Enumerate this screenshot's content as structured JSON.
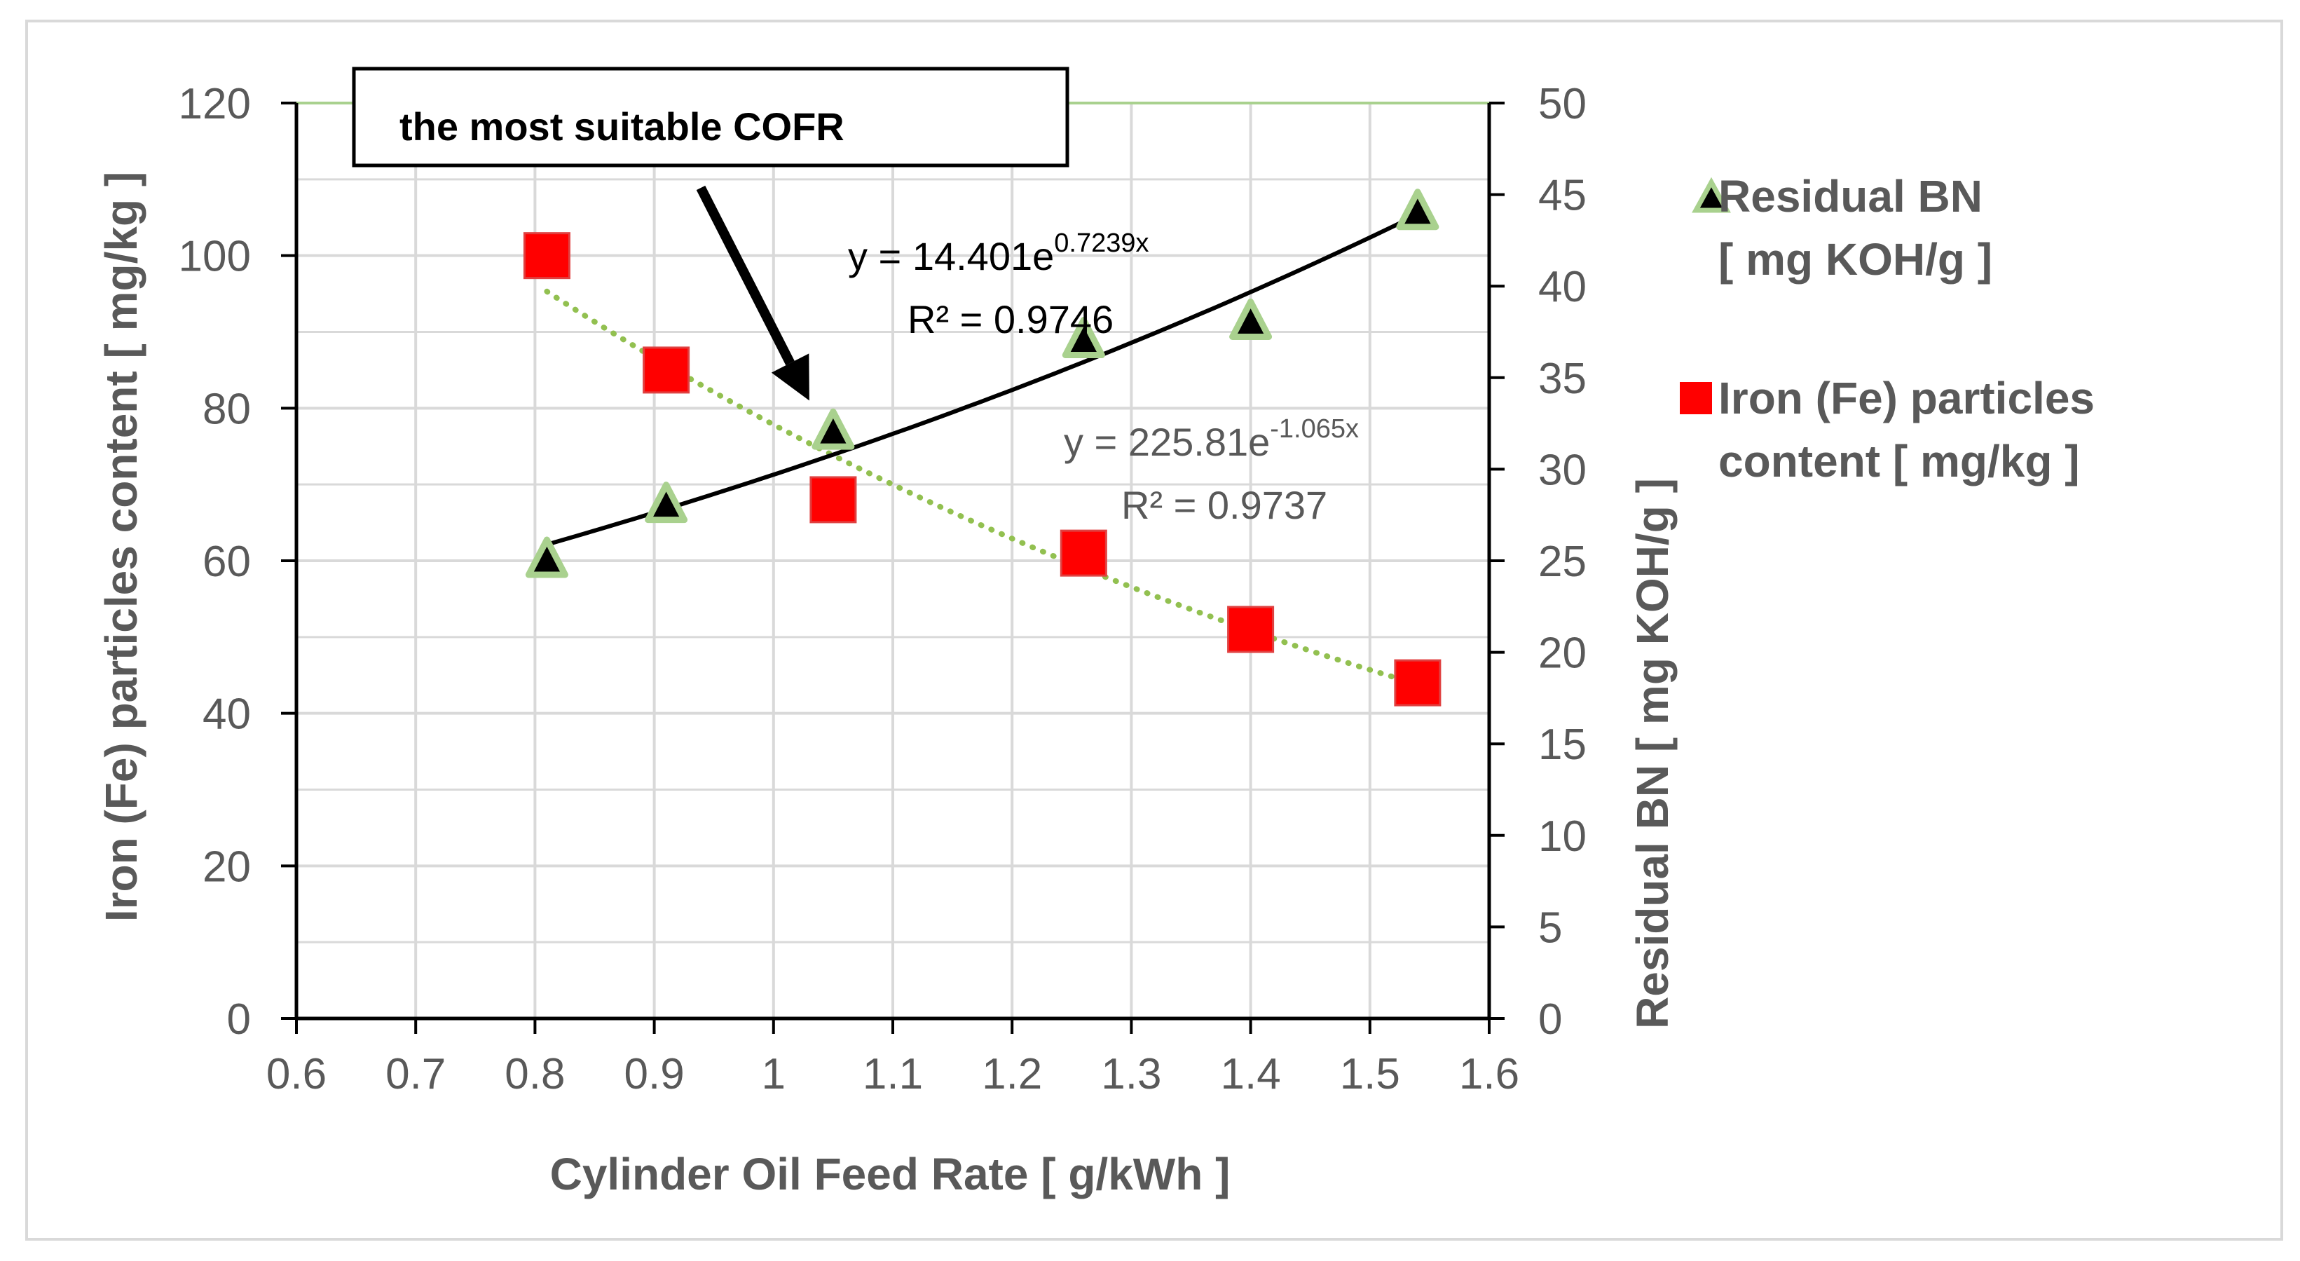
{
  "colors": {
    "grid": "#d9d9d9",
    "axis": "#000000",
    "tick_text": "#595959",
    "axis_title": "#595959",
    "bn_series": "#000000",
    "bn_marker_edge": "#a9d18e",
    "fe_series": "#ff0000",
    "fe_trend": "#92c050",
    "annotation_box": "#000000",
    "top_line": "#a9d18e"
  },
  "chart_data": {
    "type": "scatter",
    "title": "",
    "xlabel": "Cylinder Oil Feed Rate  [ g/kWh ]",
    "ylabel_left": "Iron (Fe) particles content  [ mg/kg ]",
    "ylabel_right": "Residual BN  [ mg KOH/g ]",
    "xlim": [
      0.6,
      1.6
    ],
    "ylim_left": [
      0,
      120
    ],
    "ylim_right": [
      0,
      50
    ],
    "x_ticks": [
      0.6,
      0.7,
      0.8,
      0.9,
      1,
      1.1,
      1.2,
      1.3,
      1.4,
      1.5,
      1.6
    ],
    "x_tick_labels": [
      "0.6",
      "0.7",
      "0.8",
      "0.9",
      "1",
      "1.1",
      "1.2",
      "1.3",
      "1.4",
      "1.5",
      "1.6"
    ],
    "y_left_ticks": [
      0,
      20,
      40,
      60,
      80,
      100,
      120
    ],
    "y_left_tick_labels": [
      "0",
      "20",
      "40",
      "60",
      "80",
      "100",
      "120"
    ],
    "y_right_ticks": [
      0,
      5,
      10,
      15,
      20,
      25,
      30,
      35,
      40,
      45,
      50
    ],
    "y_right_tick_labels": [
      "0",
      "5",
      "10",
      "15",
      "20",
      "25",
      "30",
      "35",
      "40",
      "45",
      "50"
    ],
    "grid": true,
    "legend_position": "right",
    "series": [
      {
        "name": "Residual BN  [ mg KOH/g ]",
        "legend_line1": "Residual BN",
        "legend_line2": "[ mg KOH/g ]",
        "axis": "right",
        "marker": "triangle",
        "x": [
          0.81,
          0.91,
          1.05,
          1.26,
          1.4,
          1.54
        ],
        "y": [
          25.0,
          28.0,
          32.0,
          37.0,
          38.0,
          44.0
        ],
        "trendline": {
          "type": "exponential",
          "a": 14.401,
          "b": 0.7239,
          "equation_prefix": "y = 14.401e",
          "equation_exponent": "0.7239x",
          "r2_label": "R² = 0.9746",
          "style": "solid"
        }
      },
      {
        "name": "Iron (Fe) particles content  [ mg/kg ]",
        "legend_line1": "Iron (Fe) particles",
        "legend_line2": "content  [ mg/kg ]",
        "axis": "left",
        "marker": "square",
        "x": [
          0.81,
          0.91,
          1.05,
          1.26,
          1.4,
          1.54
        ],
        "y": [
          100,
          85,
          68,
          61,
          51,
          44
        ],
        "trendline": {
          "type": "exponential",
          "a": 225.81,
          "b": -1.065,
          "equation_prefix": "y = 225.81e",
          "equation_exponent": "-1.065x",
          "r2_label": "R² = 0.9737",
          "style": "dotted"
        }
      }
    ],
    "annotations": [
      {
        "text": "the most suitable COFR",
        "arrow_target": {
          "x": 1.03,
          "y_left": 81
        }
      }
    ]
  }
}
